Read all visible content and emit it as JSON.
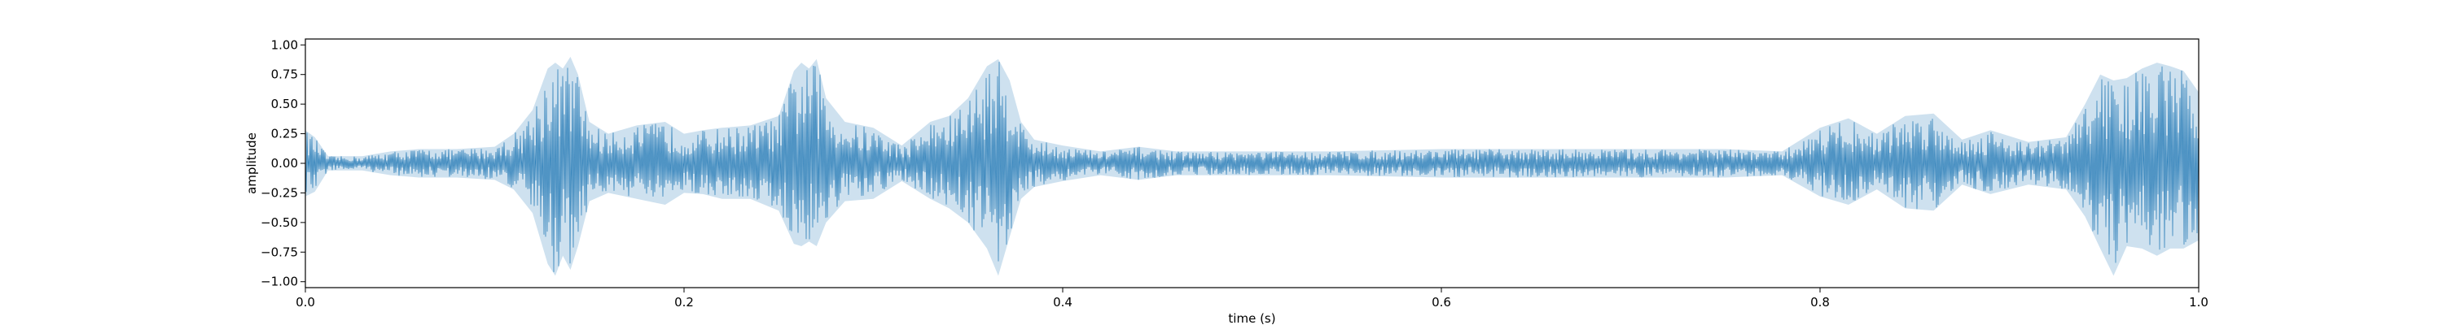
{
  "chart_data": {
    "type": "line",
    "title": "",
    "xlabel": "time (s)",
    "ylabel": "amplitude",
    "xlim": [
      0.0,
      1.0
    ],
    "ylim": [
      -1.05,
      1.05
    ],
    "xticks": [
      0.0,
      0.2,
      0.4,
      0.6,
      0.8,
      1.0
    ],
    "xtick_labels": [
      "0.0",
      "0.2",
      "0.4",
      "0.6",
      "0.8",
      "1.0"
    ],
    "yticks": [
      -1.0,
      -0.75,
      -0.5,
      -0.25,
      0.0,
      0.25,
      0.5,
      0.75,
      1.0
    ],
    "ytick_labels": [
      "−1.00",
      "−0.75",
      "−0.50",
      "−0.25",
      "0.00",
      "0.25",
      "0.50",
      "0.75",
      "1.00"
    ],
    "grid": false,
    "series": [
      {
        "color": "#1f77b4",
        "envelope": {
          "time": [
            0.0,
            0.005,
            0.012,
            0.02,
            0.03,
            0.045,
            0.06,
            0.08,
            0.1,
            0.11,
            0.12,
            0.128,
            0.132,
            0.136,
            0.14,
            0.144,
            0.15,
            0.16,
            0.175,
            0.19,
            0.2,
            0.21,
            0.22,
            0.235,
            0.25,
            0.258,
            0.262,
            0.266,
            0.27,
            0.275,
            0.285,
            0.3,
            0.315,
            0.33,
            0.34,
            0.35,
            0.36,
            0.366,
            0.372,
            0.378,
            0.385,
            0.4,
            0.42,
            0.44,
            0.46,
            0.5,
            0.54,
            0.6,
            0.65,
            0.7,
            0.75,
            0.78,
            0.8,
            0.815,
            0.83,
            0.845,
            0.86,
            0.875,
            0.89,
            0.91,
            0.93,
            0.94,
            0.948,
            0.955,
            0.962,
            0.97,
            0.978,
            0.985,
            0.992,
            1.0
          ],
          "upper": [
            0.28,
            0.22,
            0.06,
            0.06,
            0.06,
            0.1,
            0.12,
            0.12,
            0.14,
            0.25,
            0.45,
            0.8,
            0.85,
            0.8,
            0.9,
            0.75,
            0.35,
            0.25,
            0.32,
            0.35,
            0.25,
            0.28,
            0.3,
            0.32,
            0.4,
            0.78,
            0.85,
            0.8,
            0.88,
            0.55,
            0.35,
            0.3,
            0.15,
            0.35,
            0.4,
            0.55,
            0.82,
            0.88,
            0.7,
            0.35,
            0.2,
            0.15,
            0.1,
            0.14,
            0.1,
            0.1,
            0.1,
            0.12,
            0.12,
            0.12,
            0.12,
            0.1,
            0.3,
            0.38,
            0.25,
            0.4,
            0.42,
            0.2,
            0.28,
            0.18,
            0.22,
            0.5,
            0.75,
            0.7,
            0.72,
            0.8,
            0.85,
            0.82,
            0.78,
            0.6
          ],
          "lower": [
            -0.28,
            -0.24,
            -0.06,
            -0.06,
            -0.06,
            -0.1,
            -0.12,
            -0.12,
            -0.14,
            -0.22,
            -0.42,
            -0.85,
            -0.95,
            -0.78,
            -0.9,
            -0.7,
            -0.32,
            -0.25,
            -0.3,
            -0.35,
            -0.25,
            -0.26,
            -0.3,
            -0.3,
            -0.4,
            -0.68,
            -0.7,
            -0.66,
            -0.7,
            -0.5,
            -0.32,
            -0.3,
            -0.15,
            -0.3,
            -0.38,
            -0.5,
            -0.72,
            -0.95,
            -0.62,
            -0.3,
            -0.2,
            -0.15,
            -0.1,
            -0.14,
            -0.1,
            -0.1,
            -0.1,
            -0.12,
            -0.12,
            -0.12,
            -0.12,
            -0.1,
            -0.28,
            -0.35,
            -0.22,
            -0.38,
            -0.4,
            -0.18,
            -0.26,
            -0.18,
            -0.22,
            -0.45,
            -0.72,
            -0.95,
            -0.7,
            -0.72,
            -0.78,
            -0.72,
            -0.72,
            -0.65
          ]
        }
      }
    ]
  }
}
